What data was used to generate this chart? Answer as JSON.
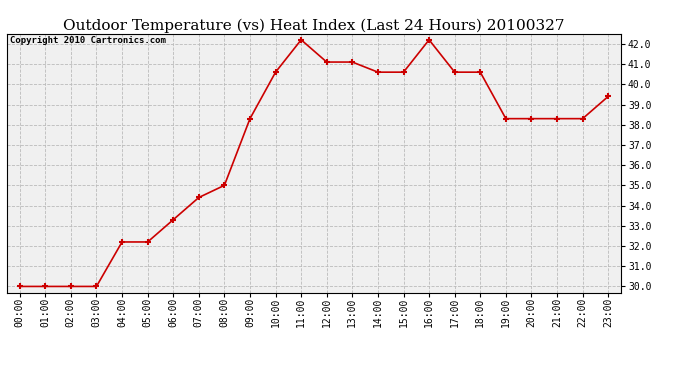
{
  "title": "Outdoor Temperature (vs) Heat Index (Last 24 Hours) 20100327",
  "copyright": "Copyright 2010 Cartronics.com",
  "x_labels": [
    "00:00",
    "01:00",
    "02:00",
    "03:00",
    "04:00",
    "05:00",
    "06:00",
    "07:00",
    "08:00",
    "09:00",
    "10:00",
    "11:00",
    "12:00",
    "13:00",
    "14:00",
    "15:00",
    "16:00",
    "17:00",
    "18:00",
    "19:00",
    "20:00",
    "21:00",
    "22:00",
    "23:00"
  ],
  "y_values": [
    30.0,
    30.0,
    30.0,
    30.0,
    32.2,
    32.2,
    33.3,
    34.4,
    35.0,
    38.3,
    40.6,
    42.2,
    41.1,
    41.1,
    40.6,
    40.6,
    42.2,
    40.6,
    40.6,
    38.3,
    38.3,
    38.3,
    38.3,
    39.4
  ],
  "line_color": "#cc0000",
  "marker": "+",
  "marker_size": 5,
  "marker_linewidth": 1.5,
  "line_width": 1.2,
  "ytick_min": 30.0,
  "ytick_max": 42.0,
  "ytick_step": 1.0,
  "ylim_min": 29.7,
  "ylim_max": 42.5,
  "bg_color": "#f0f0f0",
  "grid_color": "#bbbbbb",
  "title_fontsize": 11,
  "copyright_fontsize": 6.5,
  "tick_fontsize": 7,
  "title_font": "DejaVu Serif"
}
